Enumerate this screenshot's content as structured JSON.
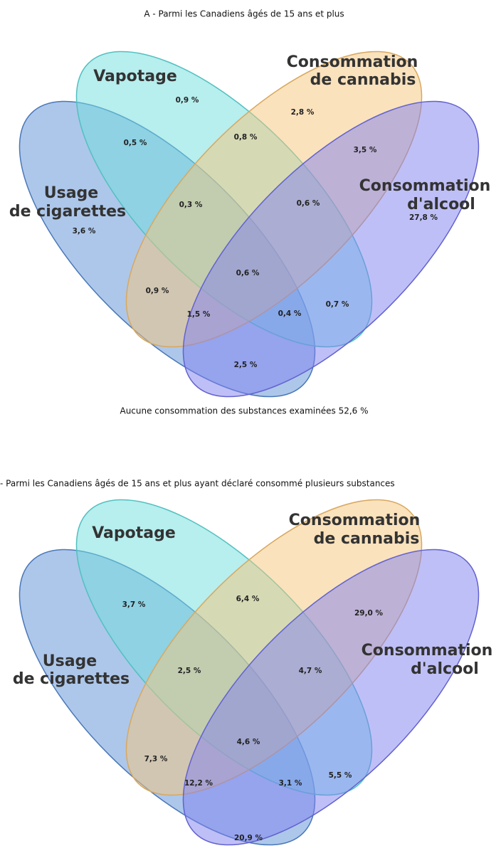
{
  "diagrams": [
    {
      "title": "A - Parmi les Canadiens âgés de 15 ans et plus",
      "sets": [
        {
          "name": "cigarettes",
          "label": [
            "Usage",
            "de cigarettes"
          ]
        },
        {
          "name": "vapotage",
          "label": [
            "Vapotage"
          ]
        },
        {
          "name": "cannabis",
          "label": [
            "Consommation",
            "de cannabis"
          ]
        },
        {
          "name": "alcool",
          "label": [
            "Consommation",
            "d'alcool"
          ]
        }
      ],
      "regions": [
        "0,9 %",
        "2,8 %",
        "0,5 %",
        "0,8 %",
        "3,5 %",
        "0,3 %",
        "0,6 %",
        "27,8 %",
        "3,6 %",
        "0,6 %",
        "0,9 %",
        "0,7 %",
        "1,5 %",
        "0,4 %",
        "2,5 %"
      ],
      "footer": "Aucune consommation des substances examinées  52,6 %"
    },
    {
      "title": "- Parmi les Canadiens âgés de 15 ans et plus ayant déclaré consommé plusieurs substances",
      "sets": [
        {
          "name": "cigarettes",
          "label": [
            "Usage",
            "de cigarettes"
          ]
        },
        {
          "name": "vapotage",
          "label": [
            "Vapotage"
          ]
        },
        {
          "name": "cannabis",
          "label": [
            "Consommation",
            "de cannabis"
          ]
        },
        {
          "name": "alcool",
          "label": [
            "Consommation",
            "d'alcool"
          ]
        }
      ],
      "regions": [
        "3,7 %",
        "6,4 %",
        "29,0 %",
        "2,5 %",
        "4,7 %",
        "4,6 %",
        "7,3 %",
        "5,5 %",
        "12,2 %",
        "3,1 %",
        "20,9 %"
      ]
    }
  ]
}
